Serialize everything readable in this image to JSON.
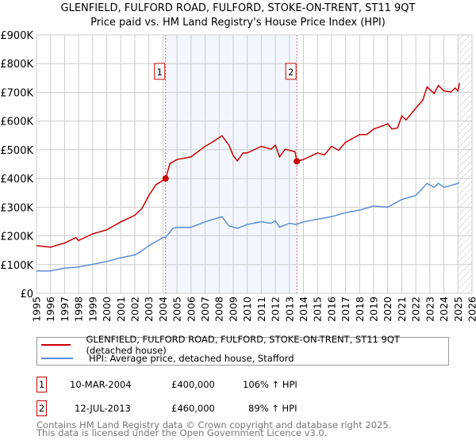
{
  "chart_data": {
    "type": "line",
    "title": "GLENFIELD, FULFORD ROAD, FULFORD, STOKE-ON-TRENT, ST11 9QT",
    "subtitle": "Price paid vs. HM Land Registry's House Price Index (HPI)",
    "xlim": [
      1995,
      2026
    ],
    "ylim": [
      0,
      900000
    ],
    "yticks": [
      0,
      100000,
      200000,
      300000,
      400000,
      500000,
      600000,
      700000,
      800000,
      900000
    ],
    "ytick_labels": [
      "£0",
      "£100K",
      "£200K",
      "£300K",
      "£400K",
      "£500K",
      "£600K",
      "£700K",
      "£800K",
      "£900K"
    ],
    "xticks": [
      1995,
      1996,
      1997,
      1998,
      1999,
      2000,
      2001,
      2002,
      2003,
      2004,
      2005,
      2006,
      2007,
      2008,
      2009,
      2010,
      2011,
      2012,
      2013,
      2014,
      2015,
      2016,
      2017,
      2018,
      2019,
      2020,
      2021,
      2022,
      2023,
      2024,
      2025,
      2026
    ],
    "xtick_labels": [
      "1995",
      "1996",
      "1997",
      "1998",
      "1999",
      "2000",
      "2001",
      "2002",
      "2003",
      "2004",
      "2005",
      "2006",
      "2007",
      "2008",
      "2009",
      "2010",
      "2011",
      "2012",
      "2013",
      "2014",
      "2015",
      "2016",
      "2017",
      "2018",
      "2019",
      "2020",
      "2021",
      "2022",
      "2023",
      "2024",
      "2025",
      "2026"
    ],
    "grid": true,
    "shaded_range": [
      2004.19,
      2013.53
    ],
    "forecast_hatch_from": 2025.0,
    "series": [
      {
        "name": "GLENFIELD, FULFORD ROAD, FULFORD, STOKE-ON-TRENT, ST11 9QT (detached house)",
        "color": "#cc0000",
        "x": [
          1995,
          1996,
          1997,
          1997.8,
          1998,
          1999,
          2000,
          2001,
          2002,
          2002.5,
          2003,
          2003.5,
          2004.19,
          2004.5,
          2005,
          2006,
          2007,
          2007.5,
          2008.2,
          2008.7,
          2009,
          2009.3,
          2009.7,
          2010,
          2011,
          2011.7,
          2012,
          2012.3,
          2012.7,
          2013.4,
          2013.53,
          2014,
          2015,
          2015.5,
          2016,
          2016.5,
          2017,
          2018,
          2018.5,
          2019,
          2020,
          2020.3,
          2020.7,
          2021,
          2021.3,
          2022,
          2022.5,
          2022.8,
          2023.3,
          2023.6,
          2024,
          2024.5,
          2024.8,
          2025.0,
          2025.1
        ],
        "y": [
          166000,
          161000,
          175000,
          194000,
          184000,
          207000,
          221000,
          249000,
          272000,
          295000,
          341000,
          378000,
          400000,
          452000,
          466000,
          475000,
          512000,
          526000,
          549000,
          516000,
          480000,
          461000,
          489000,
          489000,
          512000,
          502000,
          516000,
          475000,
          502000,
          493000,
          460000,
          466000,
          489000,
          482000,
          512000,
          498000,
          526000,
          553000,
          553000,
          572000,
          590000,
          572000,
          576000,
          618000,
          604000,
          645000,
          673000,
          719000,
          696000,
          724000,
          705000,
          701000,
          715000,
          705000,
          733000
        ]
      },
      {
        "name": "HPI: Average price, detached house, Stafford",
        "color": "#5b8fd4",
        "x": [
          1995,
          1996,
          1997,
          1998,
          1999,
          2000,
          2001,
          2002,
          2002.5,
          2003,
          2004,
          2004.19,
          2004.7,
          2005,
          2006,
          2007,
          2008.2,
          2008.7,
          2009.3,
          2010,
          2011,
          2011.7,
          2012,
          2012.3,
          2013,
          2013.5,
          2014,
          2015,
          2016,
          2017,
          2018,
          2019,
          2020,
          2021,
          2022,
          2022.8,
          2023.3,
          2023.6,
          2024,
          2025,
          2025.1
        ],
        "y": [
          78000,
          78000,
          88000,
          92000,
          101000,
          111000,
          124000,
          134000,
          148000,
          166000,
          194000,
          195000,
          226000,
          230000,
          230000,
          249000,
          267000,
          235000,
          226000,
          240000,
          249000,
          244000,
          253000,
          230000,
          244000,
          240000,
          249000,
          258000,
          267000,
          281000,
          290000,
          304000,
          300000,
          327000,
          341000,
          383000,
          369000,
          383000,
          369000,
          383000,
          387000
        ]
      }
    ],
    "sales": [
      {
        "label": "1",
        "x": 2004.19,
        "y": 400000
      },
      {
        "label": "2",
        "x": 2013.53,
        "y": 460000
      }
    ],
    "legend_placement": "below"
  },
  "legend": {
    "items": [
      {
        "label": "GLENFIELD, FULFORD ROAD, FULFORD, STOKE-ON-TRENT, ST11 9QT (detached house)",
        "color": "#cc0000"
      },
      {
        "label": "HPI: Average price, detached house, Stafford",
        "color": "#5b8fd4"
      }
    ]
  },
  "transactions": [
    {
      "num": "1",
      "date": "10-MAR-2004",
      "price": "£400,000",
      "hpi": "106% ↑ HPI"
    },
    {
      "num": "2",
      "date": "12-JUL-2013",
      "price": "£460,000",
      "hpi": "89% ↑ HPI"
    }
  ],
  "footer": {
    "line1": "Contains HM Land Registry data © Crown copyright and database right 2025.",
    "line2": "This data is licensed under the Open Government Licence v3.0."
  }
}
